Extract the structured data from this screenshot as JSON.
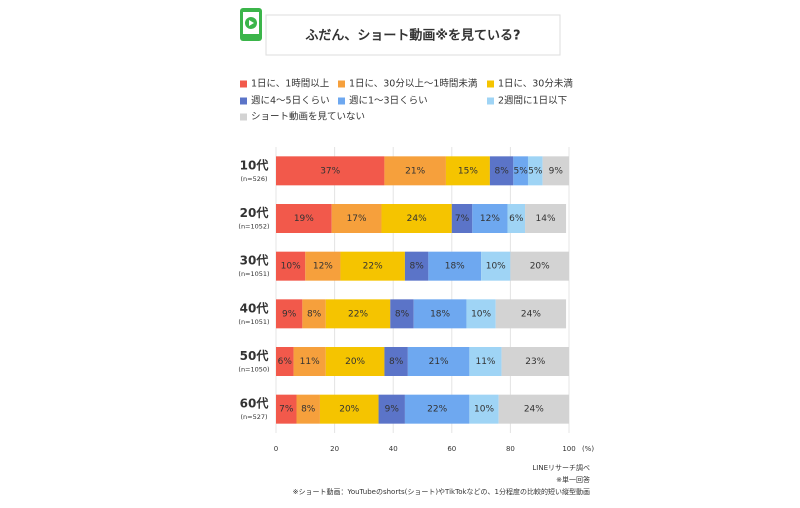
{
  "chart_data": {
    "type": "stacked-bar-horizontal",
    "title": "ふだん、ショート動画※を見ている?",
    "categories": [
      "10代",
      "20代",
      "30代",
      "40代",
      "50代",
      "60代"
    ],
    "category_notes": [
      "(n=526)",
      "(n=1052)",
      "(n=1051)",
      "(n=1051)",
      "(n=1050)",
      "(n=527)"
    ],
    "series": [
      {
        "name": "1日に、1時間以上",
        "color": "#f2594b",
        "values": [
          37,
          19,
          10,
          9,
          6,
          7
        ],
        "value_labels": [
          "37%",
          "19%",
          "10%",
          "9%",
          "6%",
          "7%"
        ]
      },
      {
        "name": "1日に、30分以上〜1時間未満",
        "color": "#f6a03c",
        "values": [
          21,
          17,
          12,
          8,
          11,
          8
        ],
        "value_labels": [
          "21%",
          "17%",
          "12%",
          "8%",
          "11%",
          "8%"
        ]
      },
      {
        "name": "1日に、30分未満",
        "color": "#f5c400",
        "values": [
          15,
          24,
          22,
          22,
          20,
          20
        ],
        "value_labels": [
          "15%",
          "24%",
          "22%",
          "22%",
          "20%",
          "20%"
        ]
      },
      {
        "name": "週に4〜5日くらい",
        "color": "#5b74c8",
        "values": [
          8,
          7,
          8,
          8,
          8,
          9
        ],
        "value_labels": [
          "8%",
          "7%",
          "8%",
          "8%",
          "8%",
          "9%"
        ]
      },
      {
        "name": "週に1〜3日くらい",
        "color": "#6ea8f0",
        "values": [
          5,
          12,
          18,
          18,
          21,
          22
        ],
        "value_labels": [
          "5%",
          "12%",
          "18%",
          "18%",
          "21%",
          "22%"
        ]
      },
      {
        "name": "2週間に1日以下",
        "color": "#9fd4f5",
        "values": [
          5,
          6,
          10,
          10,
          11,
          10
        ],
        "value_labels": [
          "5%",
          "6%",
          "10%",
          "10%",
          "11%",
          "10%"
        ]
      },
      {
        "name": "ショート動画を見ていない",
        "color": "#d3d3d3",
        "values": [
          9,
          14,
          20,
          24,
          23,
          24
        ],
        "value_labels": [
          "9%",
          "14%",
          "20%",
          "24%",
          "23%",
          "24%"
        ]
      }
    ],
    "xlim": [
      0,
      100
    ],
    "xticks": [
      0,
      20,
      40,
      60,
      80,
      100
    ],
    "x_unit": "(%)",
    "grid": true,
    "notes": [
      "LINEリサーチ調べ",
      "※単一回答",
      "※ショート動画：YouTubeのshorts(ショート)やTikTokなどの、1分程度の比較的短い縦型動画"
    ]
  }
}
